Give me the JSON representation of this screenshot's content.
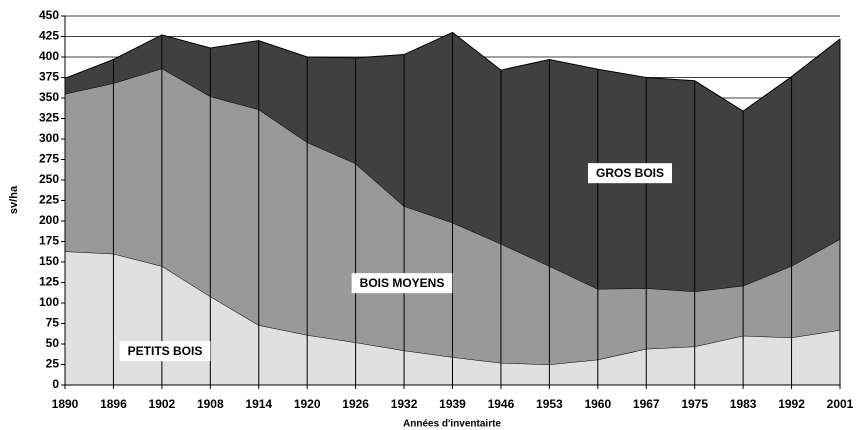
{
  "chart_data": {
    "type": "stacked-area",
    "x_label": "Années d'inventairte",
    "y_label": "sv/ha",
    "categories": [
      "1890",
      "1896",
      "1902",
      "1908",
      "1914",
      "1920",
      "1926",
      "1932",
      "1939",
      "1946",
      "1953",
      "1960",
      "1967",
      "1975",
      "1983",
      "1992",
      "2001"
    ],
    "series": [
      {
        "name": "PETITS BOIS",
        "color": "#e0e0e0",
        "values": [
          163,
          160,
          145,
          108,
          73,
          61,
          52,
          42,
          34,
          27,
          25,
          31,
          44,
          47,
          60,
          58,
          67
        ]
      },
      {
        "name": "BOIS MOYENS",
        "color": "#999999",
        "values": [
          192,
          208,
          241,
          244,
          263,
          235,
          218,
          176,
          164,
          145,
          120,
          86,
          74,
          67,
          61,
          87,
          111
        ]
      },
      {
        "name": "GROS BOIS",
        "color": "#404040",
        "values": [
          19,
          29,
          41,
          59,
          84,
          104,
          129,
          185,
          232,
          212,
          252,
          268,
          257,
          257,
          213,
          231,
          244
        ]
      }
    ],
    "ylim": [
      0,
      450
    ],
    "yticks": [
      0,
      25,
      50,
      75,
      100,
      125,
      150,
      175,
      200,
      225,
      250,
      275,
      300,
      325,
      350,
      375,
      400,
      425,
      450
    ],
    "grid": true
  }
}
